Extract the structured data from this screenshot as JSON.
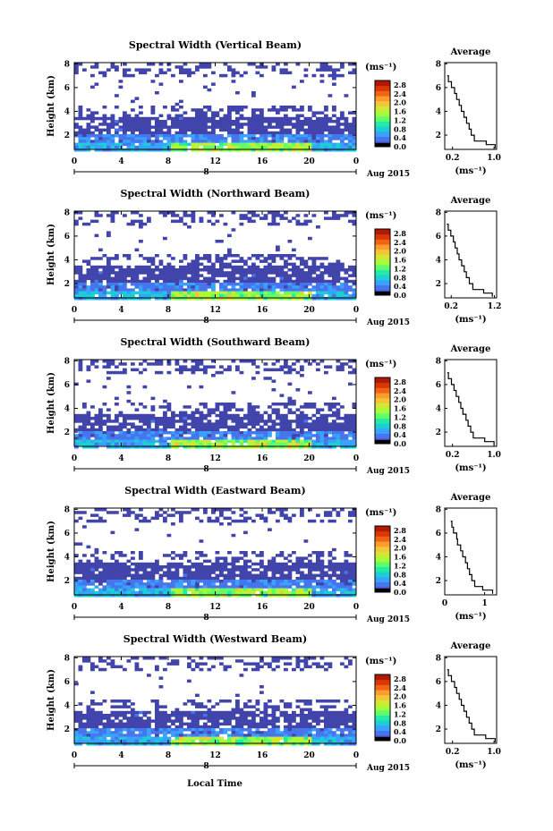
{
  "chart_data": [
    {
      "type": "heatmap",
      "title": "Spectral Width (Vertical Beam)",
      "ylabel": "Height (km)",
      "x_ticks": [
        "0",
        "4",
        "8",
        "12",
        "16",
        "20",
        "0"
      ],
      "xlim": [
        0,
        24
      ],
      "y_ticks": [
        "2",
        "4",
        "6",
        "8"
      ],
      "ylim": [
        0.8,
        8.1
      ],
      "date_label": "Aug 2015",
      "day_label": "8",
      "colorbar": {
        "unit": "(ms⁻¹)",
        "ticks": [
          "0.0",
          "0.4",
          "0.8",
          "1.2",
          "1.6",
          "2.0",
          "2.4",
          "2.8"
        ],
        "range": [
          0,
          3.0
        ]
      },
      "profile": {
        "title": "Average",
        "x_ticks": [
          "0.2",
          "1.0"
        ],
        "xlim": [
          0.05,
          1.05
        ],
        "y_ticks": [
          "2",
          "4",
          "6",
          "8"
        ],
        "ylim": [
          0.8,
          8.1
        ],
        "xlabel": "(ms⁻¹)",
        "heights": [
          0.9,
          1.2,
          1.5,
          2.0,
          2.5,
          3.0,
          3.5,
          4.0,
          4.5,
          5.0,
          5.5,
          6.0,
          6.5,
          7.0
        ],
        "values": [
          1.02,
          0.85,
          0.62,
          0.56,
          0.52,
          0.47,
          0.42,
          0.37,
          0.33,
          0.28,
          0.24,
          0.18,
          0.12,
          0.1
        ]
      }
    },
    {
      "type": "heatmap",
      "title": "Spectral Width (Northward Beam)",
      "ylabel": "Height (km)",
      "x_ticks": [
        "0",
        "4",
        "8",
        "12",
        "16",
        "20",
        "0"
      ],
      "xlim": [
        0,
        24
      ],
      "y_ticks": [
        "2",
        "4",
        "6",
        "8"
      ],
      "ylim": [
        0.8,
        8.1
      ],
      "date_label": "Aug 2015",
      "day_label": "8",
      "colorbar": {
        "unit": "(ms⁻¹)",
        "ticks": [
          "0.0",
          "0.4",
          "0.8",
          "1.2",
          "1.6",
          "2.0",
          "2.4",
          "2.8"
        ],
        "range": [
          0,
          3.0
        ]
      },
      "profile": {
        "title": "Average",
        "x_ticks": [
          "0.2",
          "1.2"
        ],
        "xlim": [
          0.05,
          1.25
        ],
        "y_ticks": [
          "2",
          "4",
          "6",
          "8"
        ],
        "ylim": [
          0.8,
          8.1
        ],
        "xlabel": "(ms⁻¹)",
        "heights": [
          0.9,
          1.2,
          1.5,
          2.0,
          2.5,
          3.0,
          3.5,
          4.0,
          4.5,
          5.0,
          5.5,
          6.0,
          6.5,
          7.0
        ],
        "values": [
          1.15,
          0.95,
          0.7,
          0.62,
          0.55,
          0.5,
          0.44,
          0.38,
          0.34,
          0.29,
          0.25,
          0.19,
          0.13,
          0.1
        ]
      }
    },
    {
      "type": "heatmap",
      "title": "Spectral Width (Southward Beam)",
      "ylabel": "Height (km)",
      "x_ticks": [
        "0",
        "4",
        "8",
        "12",
        "16",
        "20",
        "0"
      ],
      "xlim": [
        0,
        24
      ],
      "y_ticks": [
        "2",
        "4",
        "6",
        "8"
      ],
      "ylim": [
        0.8,
        8.1
      ],
      "date_label": "Aug 2015",
      "day_label": "8",
      "colorbar": {
        "unit": "(ms⁻¹)",
        "ticks": [
          "0.0",
          "0.4",
          "0.8",
          "1.2",
          "1.6",
          "2.0",
          "2.4",
          "2.8"
        ],
        "range": [
          0,
          3.0
        ]
      },
      "profile": {
        "title": "Average",
        "x_ticks": [
          "0.2",
          "1.0"
        ],
        "xlim": [
          0.05,
          1.05
        ],
        "y_ticks": [
          "2",
          "4",
          "6",
          "8"
        ],
        "ylim": [
          0.8,
          8.1
        ],
        "xlabel": "(ms⁻¹)",
        "heights": [
          0.9,
          1.2,
          1.5,
          2.0,
          2.5,
          3.0,
          3.5,
          4.0,
          4.5,
          5.0,
          5.5,
          6.0,
          6.5,
          7.0
        ],
        "values": [
          1.0,
          0.82,
          0.6,
          0.55,
          0.5,
          0.46,
          0.4,
          0.36,
          0.32,
          0.27,
          0.23,
          0.18,
          0.12,
          0.1
        ]
      }
    },
    {
      "type": "heatmap",
      "title": "Spectral Width (Eastward Beam)",
      "ylabel": "Height (km)",
      "x_ticks": [
        "0",
        "4",
        "8",
        "12",
        "16",
        "20",
        "0"
      ],
      "xlim": [
        0,
        24
      ],
      "y_ticks": [
        "2",
        "4",
        "6",
        "8"
      ],
      "ylim": [
        0.8,
        8.1
      ],
      "date_label": "Aug 2015",
      "day_label": "8",
      "colorbar": {
        "unit": "(ms⁻¹)",
        "ticks": [
          "0.0",
          "0.4",
          "0.8",
          "1.2",
          "1.6",
          "2.0",
          "2.4",
          "2.8"
        ],
        "range": [
          0,
          3.0
        ]
      },
      "profile": {
        "title": "Average",
        "x_ticks": [
          "0",
          "1"
        ],
        "xlim": [
          0,
          1.3
        ],
        "y_ticks": [
          "2",
          "4",
          "6",
          "8"
        ],
        "ylim": [
          0.8,
          8.1
        ],
        "xlabel": "(ms⁻¹)",
        "heights": [
          0.9,
          1.2,
          1.5,
          2.0,
          2.5,
          3.0,
          3.5,
          4.0,
          4.5,
          5.0,
          5.5,
          6.0,
          6.5,
          7.0
        ],
        "values": [
          1.2,
          0.95,
          0.75,
          0.68,
          0.62,
          0.57,
          0.52,
          0.45,
          0.4,
          0.32,
          0.3,
          0.22,
          0.18,
          0.15
        ]
      }
    },
    {
      "type": "heatmap",
      "title": "Spectral Width (Westward Beam)",
      "ylabel": "Height (km)",
      "x_ticks": [
        "0",
        "4",
        "8",
        "12",
        "16",
        "20",
        "0"
      ],
      "xlim": [
        0,
        24
      ],
      "y_ticks": [
        "2",
        "4",
        "6",
        "8"
      ],
      "ylim": [
        0.8,
        8.1
      ],
      "date_label": "Aug 2015",
      "day_label": "8",
      "colorbar": {
        "unit": "(ms⁻¹)",
        "ticks": [
          "0.0",
          "0.4",
          "0.8",
          "1.2",
          "1.6",
          "2.0",
          "2.4",
          "2.8"
        ],
        "range": [
          0,
          3.0
        ]
      },
      "profile": {
        "title": "Average",
        "x_ticks": [
          "0.2",
          "1.0"
        ],
        "xlim": [
          0.05,
          1.05
        ],
        "y_ticks": [
          "2",
          "4",
          "6",
          "8"
        ],
        "ylim": [
          0.8,
          8.1
        ],
        "xlabel": "(ms⁻¹)",
        "heights": [
          0.9,
          1.2,
          1.5,
          2.0,
          2.5,
          3.0,
          3.5,
          4.0,
          4.5,
          5.0,
          5.5,
          6.0,
          6.5,
          7.0
        ],
        "values": [
          1.02,
          0.84,
          0.62,
          0.57,
          0.52,
          0.47,
          0.42,
          0.37,
          0.33,
          0.28,
          0.24,
          0.18,
          0.12,
          0.1
        ]
      }
    }
  ],
  "footer": {
    "xlabel": "Local Time"
  },
  "colors": {
    "colormap": [
      "#30123b",
      "#4145ab",
      "#4675ed",
      "#39a2fc",
      "#1bcfd4",
      "#24eca6",
      "#61fc6c",
      "#a4fc3b",
      "#d1e834",
      "#f3c63a",
      "#fe9b2d",
      "#f36315",
      "#d93806",
      "#b11901"
    ],
    "under_color": "#000000"
  }
}
